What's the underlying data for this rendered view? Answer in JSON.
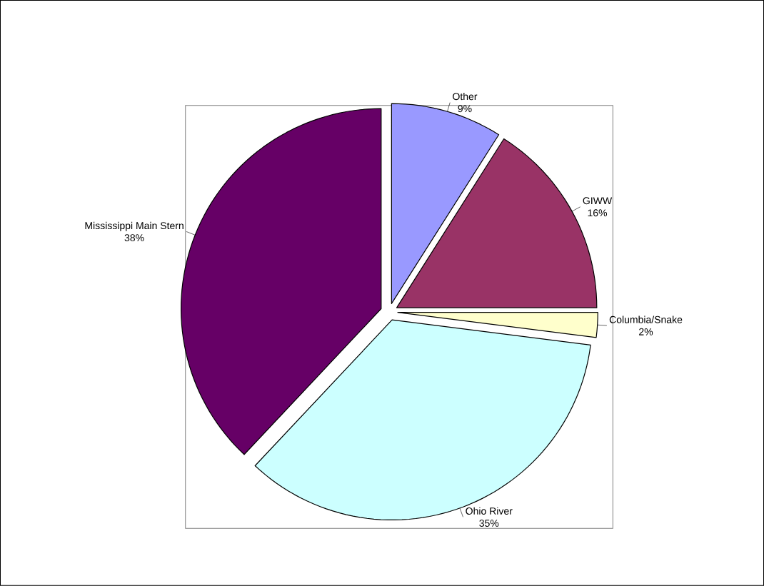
{
  "chart_data": {
    "type": "pie",
    "categories": [
      "Other",
      "GIWW",
      "Columbia/Snake",
      "Ohio River",
      "Mississippi Main Stern"
    ],
    "values": [
      9,
      16,
      2,
      35,
      38
    ],
    "colors": [
      "#9999ff",
      "#993366",
      "#ffffcc",
      "#ccffff",
      "#660066"
    ],
    "value_labels": [
      "9%",
      "16%",
      "2%",
      "35%",
      "38%"
    ]
  }
}
